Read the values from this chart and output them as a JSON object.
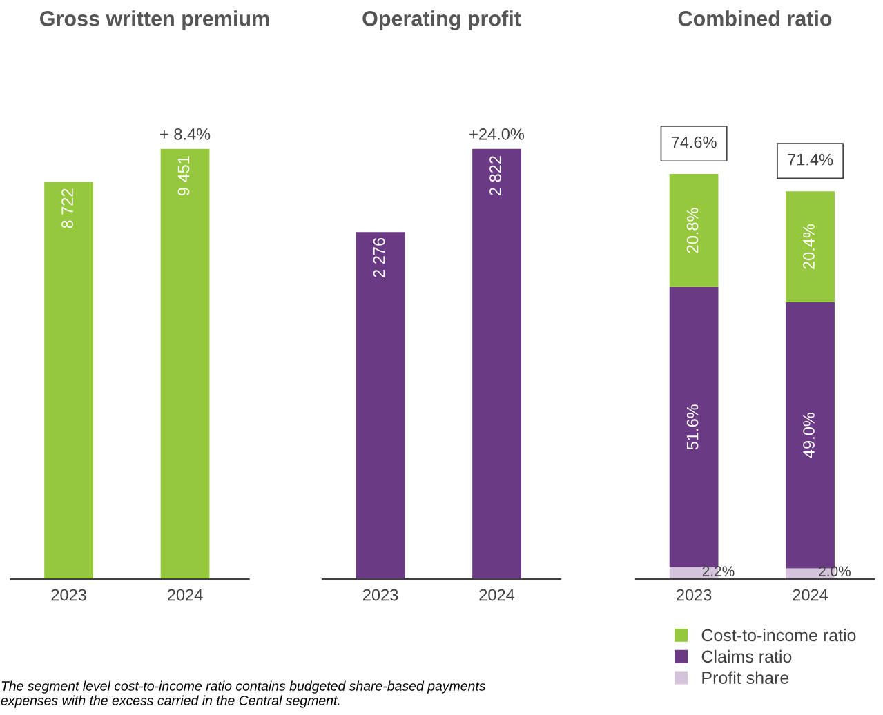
{
  "chart_data": [
    {
      "type": "bar",
      "title": "Gross written premium",
      "categories": [
        "2023",
        "2024"
      ],
      "values": [
        8722,
        9451
      ],
      "value_labels": [
        "8 722",
        "9 451"
      ],
      "color": "#95c83d",
      "annotations": [
        {
          "text": "+ 8.4%",
          "x": "2024",
          "y": 9451
        },
        "The segment level cost-to-income ratio contains budgeted share-based payments expenses with the excess carried in the Central segment."
      ]
    },
    {
      "type": "bar",
      "title": "Operating profit",
      "categories": [
        "2023",
        "2024"
      ],
      "values": [
        2276,
        2822
      ],
      "value_labels": [
        "2 276",
        "2 822"
      ],
      "color": "#6b3a84",
      "annotations": [
        {
          "text": "+24.0%",
          "x": "2024",
          "y": 2822
        }
      ]
    },
    {
      "type": "bar",
      "title": "Combined ratio",
      "categories": [
        "2023",
        "2024"
      ],
      "stacked": true,
      "legend": "bottom",
      "totals": [
        "74.6%",
        "71.4%"
      ],
      "series": [
        {
          "name": "Profit share",
          "color": "#d5c3dc",
          "values": [
            2.2,
            2.0
          ],
          "value_labels": [
            "2.2%",
            "2.0%"
          ]
        },
        {
          "name": "Claims ratio",
          "color": "#6b3a84",
          "values": [
            51.6,
            49.0
          ],
          "value_labels": [
            "51.6%",
            "49.0%"
          ]
        },
        {
          "name": "Cost-to-income ratio",
          "color": "#95c83d",
          "values": [
            20.8,
            20.4
          ],
          "value_labels": [
            "20.8%",
            "20.4%"
          ]
        }
      ]
    }
  ]
}
